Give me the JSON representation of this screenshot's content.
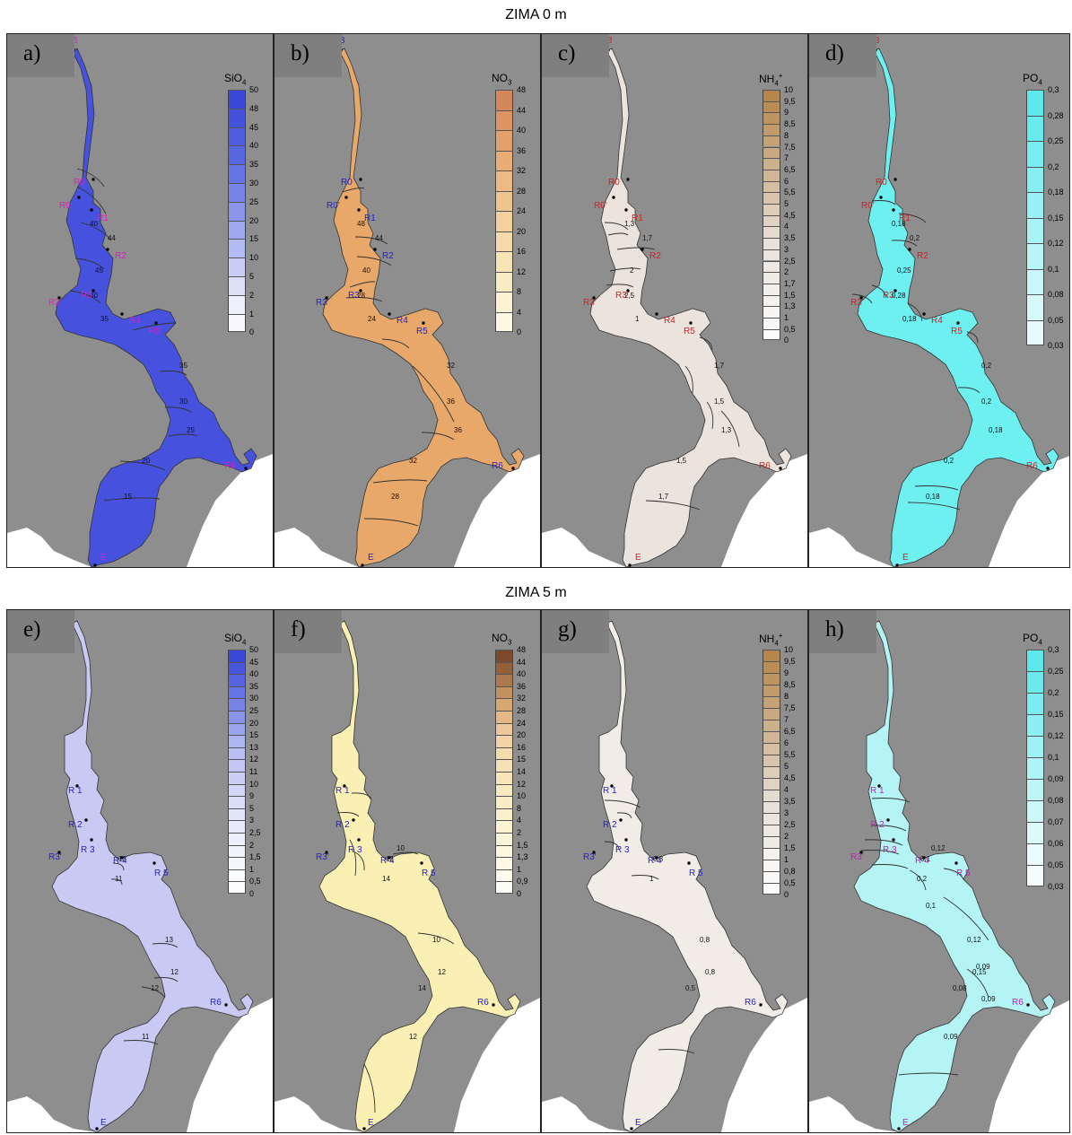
{
  "rows": [
    {
      "title": "ZIMA 0 m"
    },
    {
      "title": "ZIMA 5 m"
    }
  ],
  "panels": [
    {
      "label": "a)",
      "parameter": "SiO4",
      "fill": "#4652de",
      "labelColor": "#e21bc3",
      "legend": {
        "ticks": [
          "50",
          "48",
          "45",
          "40",
          "35",
          "30",
          "25",
          "20",
          "15",
          "10",
          "5",
          "2",
          "1",
          "0"
        ],
        "colors": [
          "#3a48d8",
          "#4452db",
          "#4e5cdd",
          "#5866e0",
          "#6674e3",
          "#7783e6",
          "#8a95ea",
          "#9fa8ee",
          "#b4bbf2",
          "#c9cdf6",
          "#dddff9",
          "#eeeffc",
          "#f8f8fe"
        ]
      },
      "stations": [
        {
          "name": "B",
          "color": "#e21bc3"
        },
        {
          "name": "R0",
          "color": "#e21bc3"
        },
        {
          "name": "R0'",
          "color": "#e21bc3"
        },
        {
          "name": "R1",
          "color": "#e21bc3"
        },
        {
          "name": "R2",
          "color": "#e21bc3"
        },
        {
          "name": "R3",
          "color": "#e21bc3"
        },
        {
          "name": "R3'",
          "color": "#e21bc3"
        },
        {
          "name": "R4",
          "color": "#e21bc3"
        },
        {
          "name": "R5",
          "color": "#e21bc3"
        },
        {
          "name": "R6",
          "color": "#e21bc3"
        },
        {
          "name": "E",
          "color": "#e21bc3"
        }
      ],
      "isolines": [
        "40",
        "44",
        "45",
        "40",
        "35",
        "30",
        "25",
        "20",
        "15",
        "35"
      ]
    },
    {
      "label": "b)",
      "parameter": "NO3",
      "fill": "#e8a86a",
      "labelColor": "#2424c8",
      "legend": {
        "ticks": [
          "48",
          "44",
          "40",
          "36",
          "32",
          "28",
          "24",
          "20",
          "16",
          "12",
          "8",
          "4",
          "0"
        ],
        "colors": [
          "#d4875a",
          "#dd9460",
          "#e3a06a",
          "#e8ad76",
          "#ecb982",
          "#efc58f",
          "#f2d09c",
          "#f5daa9",
          "#f7e3b6",
          "#f9ebc4",
          "#fbf2d3",
          "#fdf8e4"
        ]
      },
      "stations": [
        {
          "name": "B",
          "color": "#2424c8"
        },
        {
          "name": "R0",
          "color": "#2424c8"
        },
        {
          "name": "R0'",
          "color": "#2424c8"
        },
        {
          "name": "R1",
          "color": "#2424c8"
        },
        {
          "name": "R2",
          "color": "#2424c8"
        },
        {
          "name": "R3",
          "color": "#2424c8"
        },
        {
          "name": "R3'",
          "color": "#2424c8"
        },
        {
          "name": "R4",
          "color": "#2424c8"
        },
        {
          "name": "R5",
          "color": "#2424c8"
        },
        {
          "name": "R6",
          "color": "#2424c8"
        },
        {
          "name": "E",
          "color": "#2424c8"
        }
      ],
      "isolines": [
        "48",
        "44",
        "40",
        "28",
        "32",
        "36",
        "36",
        "32",
        "28",
        "24"
      ]
    },
    {
      "label": "c)",
      "parameter": "NH4+",
      "fill": "#ece4dc",
      "labelColor": "#d42020",
      "legend": {
        "ticks": [
          "10",
          "9,5",
          "9",
          "8,5",
          "8",
          "7,5",
          "7",
          "6,5",
          "6",
          "5,5",
          "5",
          "4,5",
          "4",
          "3,5",
          "3",
          "2,5",
          "2",
          "1,7",
          "1,5",
          "1,3",
          "1",
          "0,5",
          "0"
        ],
        "colors": [
          "#b5864a",
          "#b98d55",
          "#bd9460",
          "#c19b6b",
          "#c5a276",
          "#c9a981",
          "#cdb08c",
          "#d1b797",
          "#d5bea2",
          "#d9c5ad",
          "#ddccb8",
          "#e1d3c3",
          "#e5dace",
          "#e9e1d9",
          "#ede5dd",
          "#efe8e2",
          "#f1ebe6",
          "#f3eee9",
          "#f5f1ed",
          "#f7f4f1",
          "#f9f7f5",
          "#fcfbfa"
        ]
      },
      "stations": [
        {
          "name": "B",
          "color": "#d42020"
        },
        {
          "name": "R0",
          "color": "#d42020"
        },
        {
          "name": "R0'",
          "color": "#d42020"
        },
        {
          "name": "R1",
          "color": "#d42020"
        },
        {
          "name": "R2",
          "color": "#d42020"
        },
        {
          "name": "R3",
          "color": "#d42020"
        },
        {
          "name": "R3'",
          "color": "#d42020"
        },
        {
          "name": "R4",
          "color": "#d42020"
        },
        {
          "name": "R5",
          "color": "#d42020"
        },
        {
          "name": "R6",
          "color": "#d42020"
        },
        {
          "name": "E",
          "color": "#d42020"
        }
      ],
      "isolines": [
        "1,3",
        "1,7",
        "2",
        "2,5",
        "1,7",
        "1,5",
        "1,3",
        "1,5",
        "1,7",
        "1"
      ]
    },
    {
      "label": "d)",
      "parameter": "PO4",
      "fill": "#6ff0f0",
      "labelColor": "#d42020",
      "legend": {
        "ticks": [
          "0,3",
          "0,28",
          "0,25",
          "0,2",
          "0,18",
          "0,15",
          "0,12",
          "0,1",
          "0,08",
          "0,05",
          "0,03"
        ],
        "colors": [
          "#5de8ec",
          "#69eaee",
          "#78ecef",
          "#87eef1",
          "#97f0f3",
          "#a7f3f5",
          "#b7f5f7",
          "#c7f7f9",
          "#d7f9fa",
          "#e7fbfc"
        ]
      },
      "stations": [
        {
          "name": "B",
          "color": "#d42020"
        },
        {
          "name": "R0",
          "color": "#d42020"
        },
        {
          "name": "R0'",
          "color": "#d42020"
        },
        {
          "name": "R1",
          "color": "#d42020"
        },
        {
          "name": "R2",
          "color": "#d42020"
        },
        {
          "name": "R3",
          "color": "#d42020"
        },
        {
          "name": "R3'",
          "color": "#d42020"
        },
        {
          "name": "R4",
          "color": "#d42020"
        },
        {
          "name": "R5",
          "color": "#d42020"
        },
        {
          "name": "R6",
          "color": "#d42020"
        },
        {
          "name": "E",
          "color": "#d42020"
        }
      ],
      "isolines": [
        "0,18",
        "0,2",
        "0,25",
        "0,28",
        "0,2",
        "0,2",
        "0,18",
        "0,2",
        "0,18",
        "0,18"
      ]
    },
    {
      "label": "e)",
      "parameter": "SiO4",
      "fill": "#c8caf4",
      "labelColor": "#2424c8",
      "legend": {
        "ticks": [
          "50",
          "45",
          "40",
          "35",
          "30",
          "25",
          "20",
          "15",
          "13",
          "12",
          "11",
          "10",
          "9",
          "5",
          "3",
          "2,5",
          "2",
          "1,5",
          "1",
          "0,5",
          "0"
        ],
        "colors": [
          "#3a48d8",
          "#4955db",
          "#5864df",
          "#6774e3",
          "#7883e6",
          "#8a95ea",
          "#9ca6ee",
          "#aeb5f1",
          "#b9bff3",
          "#c2c7f5",
          "#cacff6",
          "#d2d6f8",
          "#dadef9",
          "#e2e5fa",
          "#e8eafb",
          "#edeffc",
          "#f2f3fd",
          "#f6f7fe",
          "#fafbfe",
          "#fdfdff"
        ]
      },
      "stations": [
        {
          "name": "R 1",
          "color": "#2424c8"
        },
        {
          "name": "R 2",
          "color": "#2424c8"
        },
        {
          "name": "R 3",
          "color": "#2424c8"
        },
        {
          "name": "R3'",
          "color": "#2424c8"
        },
        {
          "name": "R 4",
          "color": "#2424c8"
        },
        {
          "name": "R 5",
          "color": "#2424c8"
        },
        {
          "name": "R6",
          "color": "#2424c8"
        },
        {
          "name": "E",
          "color": "#2424c8"
        }
      ],
      "isolines": [
        "11",
        "12",
        "13",
        "13",
        "12",
        "11"
      ]
    },
    {
      "label": "f)",
      "parameter": "NO3",
      "fill": "#faf0b4",
      "labelColor": "#2424c8",
      "legend": {
        "ticks": [
          "48",
          "44",
          "40",
          "36",
          "32",
          "28",
          "24",
          "20",
          "16",
          "15",
          "14",
          "12",
          "10",
          "8",
          "4",
          "2",
          "1,5",
          "1,3",
          "1",
          "0,9",
          "0"
        ],
        "colors": [
          "#7a4a2a",
          "#93603a",
          "#ac784c",
          "#c3905f",
          "#d6a673",
          "#e3b988",
          "#ecc89a",
          "#f1d3a7",
          "#f4dbb0",
          "#f6e0b5",
          "#f8e5ba",
          "#f9e9c0",
          "#faedc6",
          "#fbf0cc",
          "#fcf3d3",
          "#fcf5d9",
          "#fdf7df",
          "#fdf9e6",
          "#fefbec",
          "#fefdf4"
        ]
      },
      "stations": [
        {
          "name": "R 1",
          "color": "#2424c8"
        },
        {
          "name": "R 2",
          "color": "#2424c8"
        },
        {
          "name": "R 3",
          "color": "#2424c8"
        },
        {
          "name": "R3'",
          "color": "#2424c8"
        },
        {
          "name": "R 4",
          "color": "#2424c8"
        },
        {
          "name": "R 5",
          "color": "#2424c8"
        },
        {
          "name": "R6",
          "color": "#2424c8"
        },
        {
          "name": "E",
          "color": "#2424c8"
        }
      ],
      "isolines": [
        "14",
        "12",
        "10",
        "12",
        "14",
        "12",
        "10"
      ]
    },
    {
      "label": "g)",
      "parameter": "NH4+",
      "fill": "#f1ece6",
      "labelColor": "#2424c8",
      "legend": {
        "ticks": [
          "10",
          "9,5",
          "9",
          "8,5",
          "8",
          "7,5",
          "7",
          "6,5",
          "6",
          "5,5",
          "5",
          "4,5",
          "4",
          "3,5",
          "3",
          "2,5",
          "2",
          "1,5",
          "1",
          "0,8",
          "0,5",
          "0"
        ],
        "colors": [
          "#b5864a",
          "#b98d55",
          "#bd9460",
          "#c19b6b",
          "#c5a276",
          "#c9a981",
          "#cdb08c",
          "#d1b797",
          "#d5bea2",
          "#d9c5ad",
          "#ddccb8",
          "#e1d3c3",
          "#e5dace",
          "#e9e1d9",
          "#ede5dd",
          "#efe8e2",
          "#f1ebe6",
          "#f5f1ed",
          "#f8f5f2",
          "#fbf9f7",
          "#fdfcfb"
        ]
      },
      "stations": [
        {
          "name": "R 1",
          "color": "#2424c8"
        },
        {
          "name": "R 2",
          "color": "#2424c8"
        },
        {
          "name": "R 3",
          "color": "#2424c8"
        },
        {
          "name": "R3'",
          "color": "#2424c8"
        },
        {
          "name": "R 4",
          "color": "#2424c8"
        },
        {
          "name": "R 5",
          "color": "#2424c8"
        },
        {
          "name": "R6",
          "color": "#2424c8"
        },
        {
          "name": "E",
          "color": "#2424c8"
        }
      ],
      "isolines": [
        "1",
        "0,8",
        "0,8",
        "0,8",
        "0,5"
      ]
    },
    {
      "label": "h)",
      "parameter": "PO4",
      "fill": "#b4f4f4",
      "labelColor": "#c020c0",
      "legend": {
        "ticks": [
          "0,3",
          "0,25",
          "0,2",
          "0,15",
          "0,12",
          "0,1",
          "0,09",
          "0,08",
          "0,07",
          "0,06",
          "0,05",
          "0,03"
        ],
        "colors": [
          "#5de8ec",
          "#6beaee",
          "#7cecf0",
          "#8deff2",
          "#9ef1f4",
          "#aff3f6",
          "#bff5f7",
          "#cef7f9",
          "#dcf9fa",
          "#e9fbfc",
          "#f4fdfe"
        ]
      },
      "stations": [
        {
          "name": "R 1",
          "color": "#c020c0"
        },
        {
          "name": "R 2",
          "color": "#c020c0"
        },
        {
          "name": "R 3",
          "color": "#c020c0"
        },
        {
          "name": "R3'",
          "color": "#c020c0"
        },
        {
          "name": "R 4",
          "color": "#c020c0"
        },
        {
          "name": "R 5",
          "color": "#c020c0"
        },
        {
          "name": "R6",
          "color": "#c020c0"
        },
        {
          "name": "E",
          "color": "#c020c0"
        }
      ],
      "isolines": [
        "0,2",
        "0,15",
        "0,12",
        "0,1",
        "0,08",
        "0,09",
        "0,12",
        "0,1",
        "0,09",
        "0,09"
      ]
    }
  ]
}
